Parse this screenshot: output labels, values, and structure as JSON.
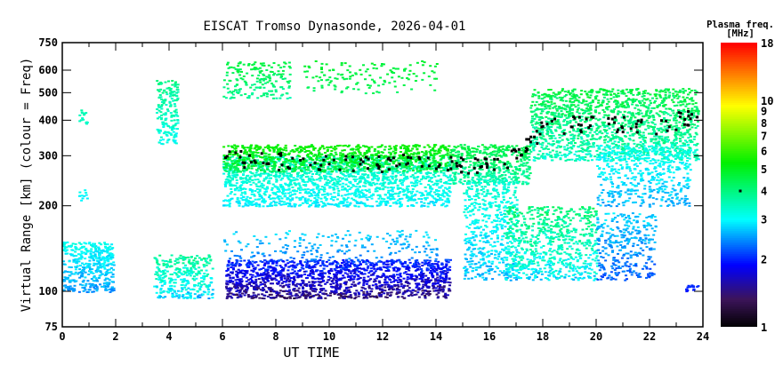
{
  "chart_data": {
    "type": "heatmap",
    "title": "EISCAT Tromso Dynasonde, 2026-04-01",
    "xlabel": "UT TIME",
    "ylabel": "Virtual Range [km] (colour = Freq)",
    "xlim": [
      0,
      24
    ],
    "ylim": [
      75,
      750
    ],
    "yscale": "log",
    "x_ticks": [
      "0",
      "2",
      "4",
      "6",
      "8",
      "10",
      "12",
      "14",
      "16",
      "18",
      "20",
      "22",
      "24"
    ],
    "y_ticks": [
      "75",
      "100",
      "200",
      "300",
      "400",
      "500",
      "600",
      "750"
    ],
    "colorbar": {
      "title": "Plasma freq.",
      "unit": "[MHz]",
      "range": [
        1,
        18
      ],
      "scale": "log",
      "ticks": [
        "1",
        "2",
        "3",
        "4",
        "5",
        "6",
        "7",
        "8",
        "9",
        "10",
        "18"
      ],
      "marker_value": 4
    },
    "echo_regions": [
      {
        "t": [
          0.0,
          1.9
        ],
        "range_km": [
          100,
          150
        ],
        "freq_mhz": [
          2.3,
          3.3
        ],
        "density": 0.8
      },
      {
        "t": [
          0.6,
          0.9
        ],
        "range_km": [
          210,
          230
        ],
        "freq_mhz": [
          2.8,
          3.2
        ],
        "density": 0.6
      },
      {
        "t": [
          0.6,
          0.9
        ],
        "range_km": [
          390,
          440
        ],
        "freq_mhz": [
          3.2,
          3.8
        ],
        "density": 0.6
      },
      {
        "t": [
          3.5,
          4.3
        ],
        "range_km": [
          330,
          560
        ],
        "freq_mhz": [
          2.8,
          4.2
        ],
        "density": 0.6
      },
      {
        "t": [
          3.4,
          5.6
        ],
        "range_km": [
          95,
          135
        ],
        "freq_mhz": [
          2.4,
          4.2
        ],
        "density": 0.6
      },
      {
        "t": [
          6.0,
          14.5
        ],
        "range_km": [
          200,
          300
        ],
        "freq_mhz": [
          2.7,
          3.8
        ],
        "density": 0.7
      },
      {
        "t": [
          6.0,
          14.5
        ],
        "range_km": [
          265,
          330
        ],
        "freq_mhz": [
          4.0,
          5.8
        ],
        "density": 0.75
      },
      {
        "t": [
          6.1,
          14.5
        ],
        "range_km": [
          95,
          130
        ],
        "freq_mhz": [
          1.2,
          2.3
        ],
        "density": 0.85
      },
      {
        "t": [
          6.0,
          14.0
        ],
        "range_km": [
          130,
          165
        ],
        "freq_mhz": [
          2.2,
          3.0
        ],
        "density": 0.15
      },
      {
        "t": [
          6.0,
          8.5
        ],
        "range_km": [
          480,
          650
        ],
        "freq_mhz": [
          3.5,
          5.0
        ],
        "density": 0.35
      },
      {
        "t": [
          9.0,
          14.0
        ],
        "range_km": [
          500,
          650
        ],
        "freq_mhz": [
          4.2,
          5.0
        ],
        "density": 0.15
      },
      {
        "t": [
          14.5,
          17.5
        ],
        "range_km": [
          240,
          330
        ],
        "freq_mhz": [
          3.2,
          5.0
        ],
        "density": 0.7
      },
      {
        "t": [
          15.0,
          17.0
        ],
        "range_km": [
          110,
          250
        ],
        "freq_mhz": [
          2.4,
          3.6
        ],
        "density": 0.45
      },
      {
        "t": [
          16.5,
          20.0
        ],
        "range_km": [
          110,
          200
        ],
        "freq_mhz": [
          2.5,
          4.5
        ],
        "density": 0.5
      },
      {
        "t": [
          17.5,
          23.8
        ],
        "range_km": [
          290,
          520
        ],
        "freq_mhz": [
          3.0,
          5.0
        ],
        "density": 0.6
      },
      {
        "t": [
          20.0,
          23.5
        ],
        "range_km": [
          200,
          330
        ],
        "freq_mhz": [
          2.4,
          3.4
        ],
        "density": 0.4
      },
      {
        "t": [
          20.0,
          22.2
        ],
        "range_km": [
          110,
          190
        ],
        "freq_mhz": [
          2.0,
          3.0
        ],
        "density": 0.4
      },
      {
        "t": [
          23.3,
          23.8
        ],
        "range_km": [
          100,
          106
        ],
        "freq_mhz": [
          1.9,
          2.1
        ],
        "density": 0.8
      }
    ],
    "foF2_trace": [
      {
        "t": 6.0,
        "range_km": 300
      },
      {
        "t": 8.0,
        "range_km": 290
      },
      {
        "t": 10.0,
        "range_km": 285
      },
      {
        "t": 12.0,
        "range_km": 285
      },
      {
        "t": 14.0,
        "range_km": 290
      },
      {
        "t": 15.5,
        "range_km": 280
      },
      {
        "t": 17.0,
        "range_km": 300
      },
      {
        "t": 18.0,
        "range_km": 380
      },
      {
        "t": 20.0,
        "range_km": 400
      },
      {
        "t": 22.0,
        "range_km": 380
      },
      {
        "t": 23.8,
        "range_km": 420
      }
    ]
  }
}
